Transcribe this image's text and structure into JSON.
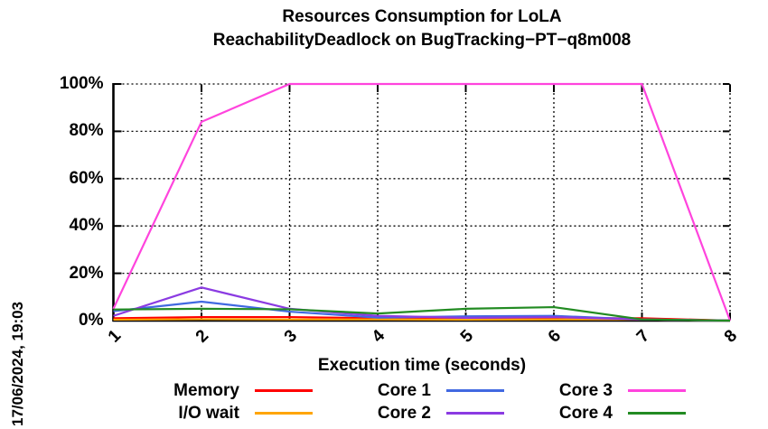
{
  "title": {
    "line1": "Resources Consumption for LoLA",
    "line2": "ReachabilityDeadlock on BugTracking−PT−q8m008"
  },
  "timestamp": "17/06/2024, 19:03",
  "chart_data": {
    "type": "line",
    "title": "Resources Consumption for LoLA — ReachabilityDeadlock on BugTracking−PT−q8m008",
    "xlabel": "Execution time (seconds)",
    "ylabel": "",
    "xlim": [
      1,
      8
    ],
    "ylim": [
      0,
      100
    ],
    "grid": true,
    "legend_position": "below",
    "x": [
      1,
      2,
      3,
      4,
      5,
      6,
      7,
      8
    ],
    "x_tick_labels": [
      "1",
      "2",
      "3",
      "4",
      "5",
      "6",
      "7",
      "8"
    ],
    "y_ticks": [
      0,
      20,
      40,
      60,
      80,
      100
    ],
    "y_tick_labels": [
      "0%",
      "20%",
      "40%",
      "60%",
      "80%",
      "100%"
    ],
    "series": [
      {
        "name": "Memory",
        "color": "#ff0000",
        "values": [
          1.0,
          1.5,
          1.5,
          1.0,
          0.8,
          1.0,
          1.0,
          0
        ]
      },
      {
        "name": "I/O wait",
        "color": "#ffa500",
        "values": [
          0.4,
          0.6,
          0.5,
          0.5,
          0.4,
          0.5,
          0.5,
          0
        ]
      },
      {
        "name": "Core 1",
        "color": "#4169e1",
        "values": [
          4.0,
          8.0,
          3.8,
          1.3,
          1.8,
          2.0,
          0.5,
          0
        ]
      },
      {
        "name": "Core 2",
        "color": "#8b3be2",
        "values": [
          2.0,
          14.0,
          5.0,
          2.0,
          1.2,
          1.5,
          0.5,
          0
        ]
      },
      {
        "name": "Core 3",
        "color": "#ff44dd",
        "values": [
          5.0,
          84.0,
          100,
          100,
          100,
          100,
          100,
          0
        ]
      },
      {
        "name": "Core 4",
        "color": "#228b22",
        "values": [
          4.7,
          5.0,
          4.8,
          3.0,
          5.0,
          5.7,
          0.5,
          0
        ]
      }
    ],
    "axis_color": "#000000",
    "grid_color": "#000000"
  }
}
